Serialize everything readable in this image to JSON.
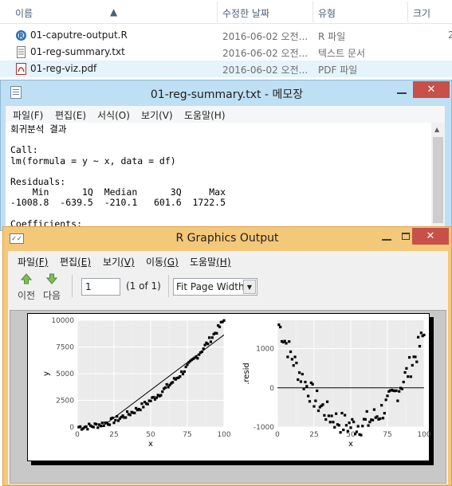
{
  "explorer": {
    "columns": [
      "이름",
      "수정한 날짜",
      "유형",
      "크기"
    ],
    "files": [
      {
        "name": "01-caputre-output.R",
        "date": "2016-06-02 오전...",
        "type": "R 파일",
        "size": "2",
        "icon": "r-file-icon"
      },
      {
        "name": "01-reg-summary.txt",
        "date": "2016-06-02 오전...",
        "type": "텍스트 문서",
        "size": "",
        "icon": "text-file-icon"
      },
      {
        "name": "01-reg-viz.pdf",
        "date": "2016-06-02 오전...",
        "type": "PDF 파일",
        "size": "",
        "icon": "pdf-file-icon"
      }
    ]
  },
  "notepad": {
    "title": "01-reg-summary.txt - 메모장",
    "menu": [
      "파일(F)",
      "편집(E)",
      "서식(O)",
      "보기(V)",
      "도움말(H)"
    ],
    "content": "회귀분석 결과\n\nCall:\nlm(formula = y ~ x, data = df)\n\nResiduals:\n    Min      1Q  Median      3Q     Max \n-1008.8  -639.5  -210.1   601.6  1722.5 \n\nCoefficients:"
  },
  "rgraphics": {
    "title": "R Graphics Output",
    "menu": [
      {
        "label": "파일",
        "key": "(F)"
      },
      {
        "label": "편집",
        "key": "(E)"
      },
      {
        "label": "보기",
        "key": "(V)"
      },
      {
        "label": "이동",
        "key": "(G)"
      },
      {
        "label": "도움말",
        "key": "(H)"
      }
    ],
    "prev_label": "이전",
    "next_label": "다음",
    "page_value": "1",
    "page_of": "(1 of 1)",
    "zoom_value": "Fit Page Width",
    "colors": {
      "accent": "#f4c879",
      "panel_bg": "#ebebeb",
      "point": "#000000"
    }
  },
  "chart_data": [
    {
      "type": "scatter",
      "title": "",
      "xlabel": "x",
      "ylabel": "y",
      "xlim": [
        0,
        100
      ],
      "ylim": [
        0,
        10000
      ],
      "xticks": [
        "0",
        "25",
        "50",
        "75",
        "100"
      ],
      "yticks": [
        "0",
        "2500",
        "5000",
        "7500",
        "10000"
      ],
      "grid": true,
      "fit_line": {
        "intercept": -1717,
        "slope": 103.5
      },
      "series": [
        {
          "x_from": 1,
          "x_to": 100,
          "values": "y = x^2 + noise"
        }
      ]
    },
    {
      "type": "scatter",
      "title": "",
      "xlabel": "x",
      "ylabel": ".resid",
      "xlim": [
        0,
        100
      ],
      "ylim": [
        -1000,
        1722.5
      ],
      "xticks": [
        "0",
        "25",
        "50",
        "75",
        "100"
      ],
      "yticks": [
        "1000",
        "0",
        "-1000"
      ],
      "grid": true,
      "hline": 0,
      "series": [
        {
          "x_from": 1,
          "x_to": 100,
          "values": "residuals"
        }
      ]
    }
  ]
}
